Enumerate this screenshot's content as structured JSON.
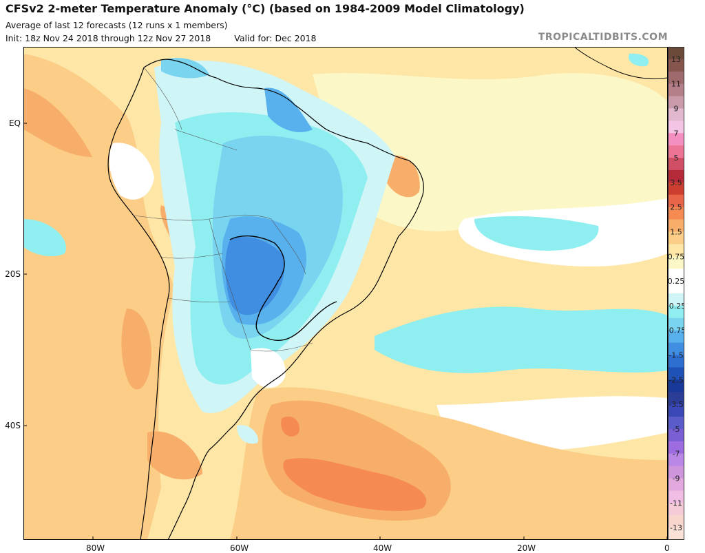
{
  "header": {
    "title": "CFSv2 2-meter Temperature Anomaly (°C) (based on 1984-2009 Model Climatology)",
    "subtitle": "Average of last 12 forecasts (12 runs x 1 members)",
    "init": "Init: 18z Nov 24 2018 through 12z Nov 27 2018",
    "valid": "Valid for: Dec 2018",
    "brand": "TROPICALTIDBITS.COM"
  },
  "axes": {
    "lat_labels": [
      "EQ",
      "20S",
      "40S"
    ],
    "lon_labels": [
      "80W",
      "60W",
      "40W",
      "20W",
      "0"
    ]
  },
  "colorbar": {
    "labels": [
      "13",
      "11",
      "9",
      "7",
      "5",
      "3.5",
      "2.5",
      "1.5",
      "0.75",
      "0.25",
      "-0.25",
      "-0.75",
      "-1.5",
      "-2.5",
      "-3.5",
      "-5",
      "-7",
      "-9",
      "-11",
      "-13"
    ],
    "colors": [
      "#6b4a3a",
      "#86564c",
      "#9e6a6c",
      "#b57f8a",
      "#c99aaa",
      "#e2b8cf",
      "#f4c4e4",
      "#f490c0",
      "#ec7596",
      "#d04f66",
      "#b42a38",
      "#cc3f30",
      "#e8654a",
      "#f58a52",
      "#f7ae6a",
      "#fbcd87",
      "#fde6a6",
      "#fbf7c6",
      "#ffffff",
      "#ffffff",
      "#cff5f7",
      "#8feef0",
      "#79d4f0",
      "#58b1ed",
      "#3f8ee2",
      "#2d6fd1",
      "#1f52b6",
      "#18399a",
      "#2b3d97",
      "#3a48b6",
      "#5a5cc9",
      "#7a5ed4",
      "#9c6ce0",
      "#b987e6",
      "#cf95dc",
      "#e3a8dd",
      "#f0bde5",
      "#f4cbd6",
      "#f9d6cc",
      "#fbe2d6"
    ]
  }
}
